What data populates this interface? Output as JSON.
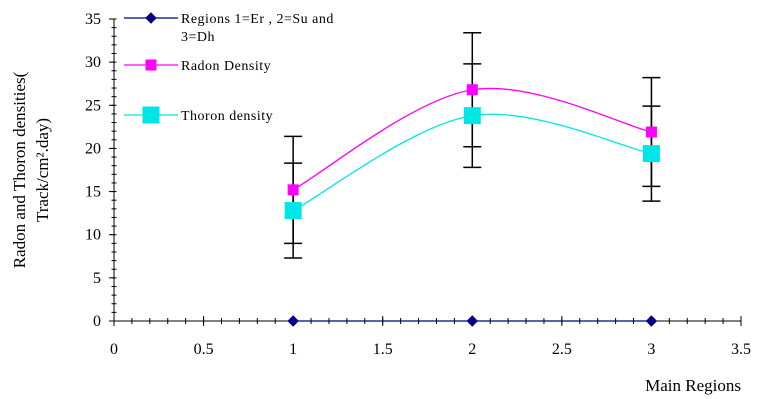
{
  "chart_data": {
    "type": "scatter",
    "title": "",
    "xlabel": "Main Regions",
    "ylabel": [
      "Radon and Thoron densities(",
      "Track/cm².day)"
    ],
    "xlim": [
      0,
      3.5
    ],
    "ylim": [
      0,
      35
    ],
    "x_ticks": [
      0,
      0.5,
      1,
      1.5,
      2,
      2.5,
      3,
      3.5
    ],
    "x_tick_labels": [
      "0",
      "0.5",
      "1",
      "1.5",
      "2",
      "2.5",
      "3",
      "3.5"
    ],
    "y_ticks": [
      0,
      5,
      10,
      15,
      20,
      25,
      30,
      35
    ],
    "y_tick_labels": [
      "0",
      "5",
      "10",
      "15",
      "20",
      "25",
      "30",
      "35"
    ],
    "grid": false,
    "legend_position": "top-left",
    "series": [
      {
        "name": [
          "Regions 1=Er , 2=Su and",
          "3=Dh"
        ],
        "marker": "diamond",
        "color": "#000080",
        "smooth": false,
        "x": [
          1,
          2,
          3
        ],
        "y": [
          0,
          0,
          0
        ]
      },
      {
        "name": "Radon Density",
        "marker": "square",
        "color": "#ff00ff",
        "smooth": true,
        "x": [
          1,
          2,
          3
        ],
        "y": [
          15.2,
          26.8,
          21.9
        ],
        "error": [
          6.2,
          6.6,
          6.3
        ]
      },
      {
        "name": "Thoron density",
        "marker": "square-large",
        "color": "#00e6e6",
        "smooth": true,
        "x": [
          1,
          2,
          3
        ],
        "y": [
          12.8,
          23.8,
          19.4
        ],
        "error": [
          5.5,
          6.0,
          5.5
        ]
      }
    ]
  }
}
